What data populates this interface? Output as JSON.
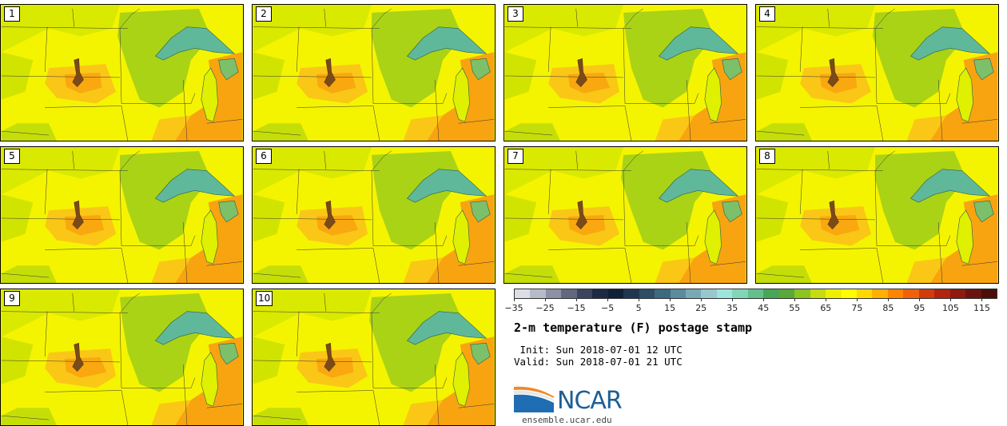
{
  "figure": {
    "title": "2-m temperature (F) postage stamp",
    "init_text": " Init: Sun 2018-07-01 12 UTC",
    "valid_text": "Valid: Sun 2018-07-01 21 UTC",
    "logo_text": "NCAR",
    "website": "ensemble.ucar.edu"
  },
  "panels": [
    {
      "label": "1"
    },
    {
      "label": "2"
    },
    {
      "label": "3"
    },
    {
      "label": "4"
    },
    {
      "label": "5"
    },
    {
      "label": "6"
    },
    {
      "label": "7"
    },
    {
      "label": "8"
    },
    {
      "label": "9"
    },
    {
      "label": "10"
    }
  ],
  "colorbar": {
    "min": -35,
    "max": 120,
    "step": 5,
    "tick_labels": [
      "−35",
      "−25",
      "−15",
      "−5",
      "5",
      "15",
      "25",
      "35",
      "45",
      "55",
      "65",
      "75",
      "85",
      "95",
      "105",
      "115"
    ],
    "tick_values": [
      -35,
      -25,
      -15,
      -5,
      5,
      15,
      25,
      35,
      45,
      55,
      65,
      75,
      85,
      95,
      105,
      115
    ],
    "colors": [
      "#dcdde6",
      "#b7bac8",
      "#8c91a4",
      "#62687f",
      "#3c4560",
      "#1e2a45",
      "#102038",
      "#1f3650",
      "#2e4e66",
      "#3e6a80",
      "#5a8c9e",
      "#78aab6",
      "#96c8cc",
      "#9ee4dc",
      "#82d6b8",
      "#62c08c",
      "#48a656",
      "#5aa838",
      "#8cc420",
      "#c4dc10",
      "#eef000",
      "#fffc00",
      "#ffd800",
      "#ffb000",
      "#ff8400",
      "#f0620a",
      "#d23c0c",
      "#b2240e",
      "#8e1a10",
      "#6a1410",
      "#4a1008"
    ]
  },
  "colors": {
    "field_yellow": "#f5f400",
    "field_orange": "#f8a410",
    "field_green": "#9ccc1a",
    "lake_teal": "#5fb89a"
  }
}
